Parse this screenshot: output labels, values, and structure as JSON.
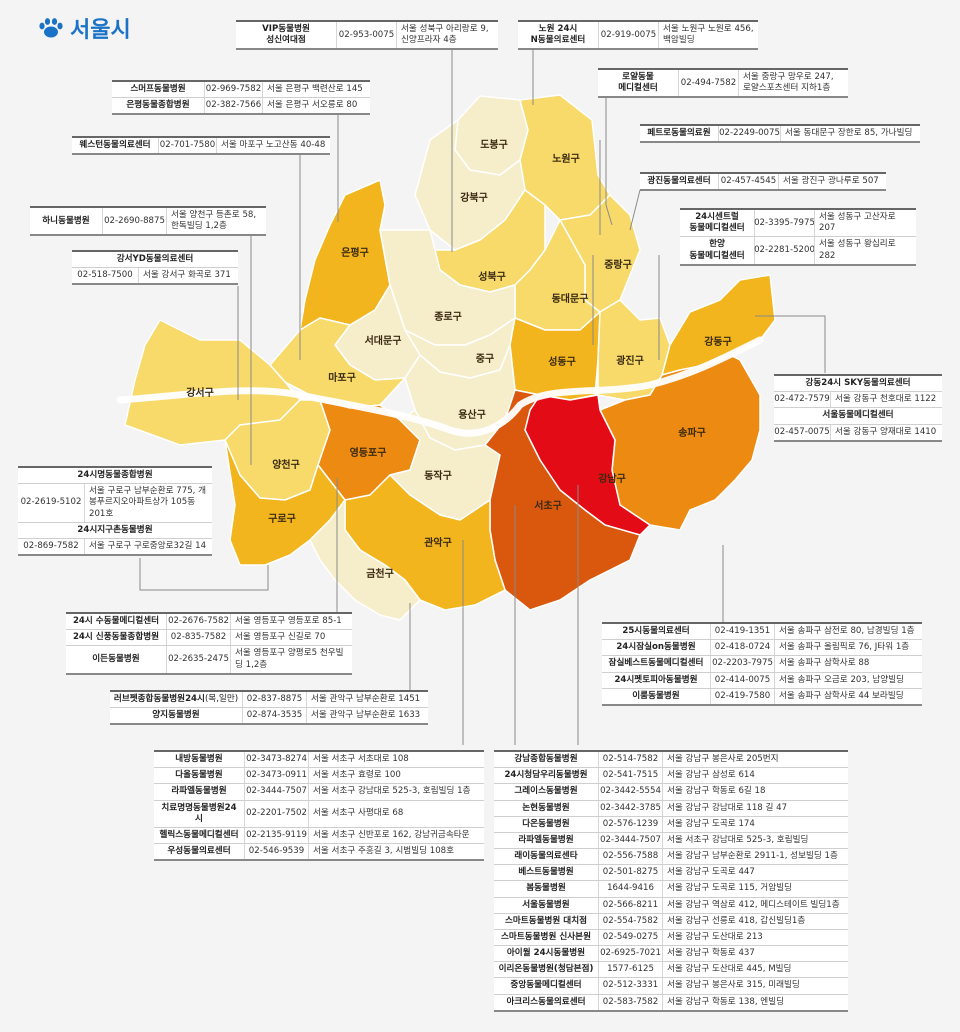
{
  "title": "서울시",
  "colors": {
    "lightest": "#f6edcb",
    "light": "#f7da6a",
    "mid": "#f2b51e",
    "orange": "#ec8a12",
    "darkorange": "#d9580e",
    "red": "#e30c16",
    "line": "#8a8a8a"
  },
  "districts": {
    "dobong": "도봉구",
    "nowon": "노원구",
    "gangbuk": "강북구",
    "eunpyeong": "은평구",
    "seongbuk": "성북구",
    "jungnang": "중랑구",
    "dongdaemun": "동대문구",
    "jongno": "종로구",
    "seodaemun": "서대문구",
    "mapo": "마포구",
    "jung": "중구",
    "seongdong": "성동구",
    "gwangjin": "광진구",
    "gangdong": "강동구",
    "gangseo": "강서구",
    "yongsan": "용산구",
    "songpa": "송파구",
    "yangcheon": "양천구",
    "yeongdeungpo": "영등포구",
    "dongjak": "동작구",
    "gangnam": "강남구",
    "seocho": "서초구",
    "guro": "구로구",
    "gwanak": "관악구",
    "geumcheon": "금천구"
  },
  "clinics": {
    "seongbuk": [
      {
        "name": "VIP동물병원\n성신여대점",
        "phone": "02-953-0075",
        "addr": "서울 성북구 아리랑로 9, 신양프라자 4층"
      }
    ],
    "nowon": [
      {
        "name": "노원 24시\nN동물의료센터",
        "phone": "02-919-0075",
        "addr": "서울 노원구 노원로 456, 백암빌딩"
      }
    ],
    "jungnang": [
      {
        "name": "로얄동물\n메디컬센터",
        "phone": "02-494-7582",
        "addr": "서울 중랑구 망우로 247, 로얄스포츠센터 지하1층"
      }
    ],
    "dongdaemun": [
      {
        "name": "페트로동물의료원",
        "phone": "02-2249-0075",
        "addr": "서울 동대문구 장한로 85, 가나빌딩"
      }
    ],
    "gwangjin": [
      {
        "name": "광진동물의료센터",
        "phone": "02-457-4545",
        "addr": "서울 광진구 광나루로 507"
      }
    ],
    "seongdong": [
      {
        "name": "24시센트럴\n동물메디컬센터",
        "phone": "02-3395-7975",
        "addr": "서울 성동구 고산자로 207"
      },
      {
        "name": "한양\n동물메디컬센터",
        "phone": "02-2281-5200",
        "addr": "서울 성동구 왕십리로 282"
      }
    ],
    "eunpyeong": [
      {
        "name": "스머프동물병원",
        "phone": "02-969-7582",
        "addr": "서울 은평구 백련산로 145"
      },
      {
        "name": "은평동물종합병원",
        "phone": "02-382-7566",
        "addr": "서울 은평구 서오릉로 80"
      }
    ],
    "mapo": [
      {
        "name": "웨스턴동물의료센터",
        "phone": "02-701-7580",
        "addr": "서울 마포구 노고산동 40-48"
      }
    ],
    "yangcheon": [
      {
        "name": "하니동물병원",
        "phone": "02-2690-8875",
        "addr": "서울 양천구 등촌로 58, 한독빌딩 1,2층"
      }
    ],
    "gangseo_title": "강서YD동물의료센터",
    "gangseo": [
      {
        "phone": "02-518-7500",
        "addr": "서울 강서구 화곡로 371"
      }
    ],
    "gangdong_title1": "강동24시 SKY동물의료센터",
    "gangdong1": {
      "phone": "02-472-7579",
      "addr": "서울 강동구 천호대로 1122"
    },
    "gangdong_title2": "서울동물메디컬센터",
    "gangdong2": {
      "phone": "02-457-0075",
      "addr": "서울 강동구 양재대로 1410"
    },
    "guro_title1": "24시명동물종합병원",
    "guro1": {
      "phone": "02-2619-5102",
      "addr": "서울 구로구 남부순환로 775, 개봉푸르지오아파트상가 105동 201호"
    },
    "guro_title2": "24시지구촌동물병원",
    "guro2": {
      "phone": "02-869-7582",
      "addr": "서울 구로구 구로중앙로32길 14"
    },
    "yeongdeungpo": [
      {
        "name": "24시 수동물메디컬센터",
        "phone": "02-2676-7582",
        "addr": "서울 영등포구 영등포로 85-1"
      },
      {
        "name": "24시 신풍동물종합병원",
        "phone": "02-835-7582",
        "addr": "서울 영등포구 신길로 70"
      },
      {
        "name": "이든동물병원",
        "phone": "02-2635-2475",
        "addr": "서울 영등포구 양평로5 천우빌딩 1,2층"
      }
    ],
    "gwanak": [
      {
        "name": "러브펫종합동물병원24시",
        "note": "(목,일만)",
        "phone": "02-837-8875",
        "addr": "서울 관악구 남부순환로 1451"
      },
      {
        "name": "양지동물병원",
        "phone": "02-874-3535",
        "addr": "서울 관악구 남부순환로 1633"
      }
    ],
    "songpa": [
      {
        "name": "25시동물의료센터",
        "phone": "02-419-1351",
        "addr": "서울 송파구 삼전로 80, 남경빌딩 1층"
      },
      {
        "name": "24시잠실on동물병원",
        "phone": "02-418-0724",
        "addr": "서울 송파구 올림픽로 76, J타워 1층"
      },
      {
        "name": "잠실베스트동물메디컬센터",
        "phone": "02-2203-7975",
        "addr": "서울 송파구 삼학사로 88"
      },
      {
        "name": "24시펫토피아동물병원",
        "phone": "02-414-0075",
        "addr": "서울 송파구 오금로 203, 남양빌딩"
      },
      {
        "name": "이룸동물병원",
        "phone": "02-419-7580",
        "addr": "서울 송파구 삼학사로 44 보라빌딩"
      }
    ],
    "seocho": [
      {
        "name": "내방동물병원",
        "phone": "02-3473-8274",
        "addr": "서울 서초구 서초대로 108"
      },
      {
        "name": "다올동물병원",
        "phone": "02-3473-0911",
        "addr": "서울 서초구 효령로 100"
      },
      {
        "name": "라파엘동물병원",
        "phone": "02-3444-7507",
        "addr": "서울 서초구 강남대로 525-3, 호림빌딩 1층"
      },
      {
        "name": "치료명명동물병원24시",
        "phone": "02-2201-7502",
        "addr": "서울 서초구 사평대로 68"
      },
      {
        "name": "헬릭스동물메디컬센터",
        "phone": "02-2135-9119",
        "addr": "서울 서초구 신반포로 162, 강남귀금속타운"
      },
      {
        "name": "우성동물의료센터",
        "phone": "02-546-9539",
        "addr": "서울 서초구 주흥길 3, 시범빌딩 108호"
      }
    ],
    "gangnam": [
      {
        "name": "강남종합동물병원",
        "phone": "02-514-7582",
        "addr": "서울 강남구 봉은사로 205번지"
      },
      {
        "name": "24시청담우리동물병원",
        "phone": "02-541-7515",
        "addr": "서울 강남구 삼성로 614"
      },
      {
        "name": "그레이스동물병원",
        "phone": "02-3442-5554",
        "addr": "서울 강남구 학동로 6길 18"
      },
      {
        "name": "논현동물병원",
        "phone": "02-3442-3785",
        "addr": "서울 강남구 강남대로 118 길 47"
      },
      {
        "name": "다온동물병원",
        "phone": "02-576-1239",
        "addr": "서울 강남구 도곡로 174"
      },
      {
        "name": "라파엘동물병원",
        "phone": "02-3444-7507",
        "addr": "서울 서초구 강남대로 525-3, 호림빌딩"
      },
      {
        "name": "래이동물의료센타",
        "phone": "02-556-7588",
        "addr": "서울 강남구 남부순환로 2911-1, 성보빌딩 1층"
      },
      {
        "name": "베스트동물병원",
        "phone": "02-501-8275",
        "addr": "서울 강남구 도곡로 447"
      },
      {
        "name": "봄동물병원",
        "phone": "1644-9416",
        "addr": "서울 강남구 도곡로 115, 거암빌딩"
      },
      {
        "name": "서울동물병원",
        "phone": "02-566-8211",
        "addr": "서울 강남구 역삼로 412, 메디스테이트 빌딩1층"
      },
      {
        "name": "스마트동물병원 대치점",
        "phone": "02-554-7582",
        "addr": "서울 강남구 선릉로 418, 갑신빌딩1층"
      },
      {
        "name": "스마트동물병원 신사본원",
        "phone": "02-549-0275",
        "addr": "서울 강남구 도산대로 213"
      },
      {
        "name": "아이월 24시동물병원",
        "phone": "02-6925-7021",
        "addr": "서울 강남구 학동로 437"
      },
      {
        "name": "이리온동물병원(청담본점)",
        "phone": "1577-6125",
        "addr": "서울 강남구 도산대로 445, M빌딩"
      },
      {
        "name": "중앙동물메디컬센터",
        "phone": "02-512-3331",
        "addr": "서울 강남구 봉은사로 315, 미래빌딩"
      },
      {
        "name": "아크리스동물의료센터",
        "phone": "02-583-7582",
        "addr": "서울 강남구 학동로 138, 엔빌딩"
      }
    ]
  }
}
